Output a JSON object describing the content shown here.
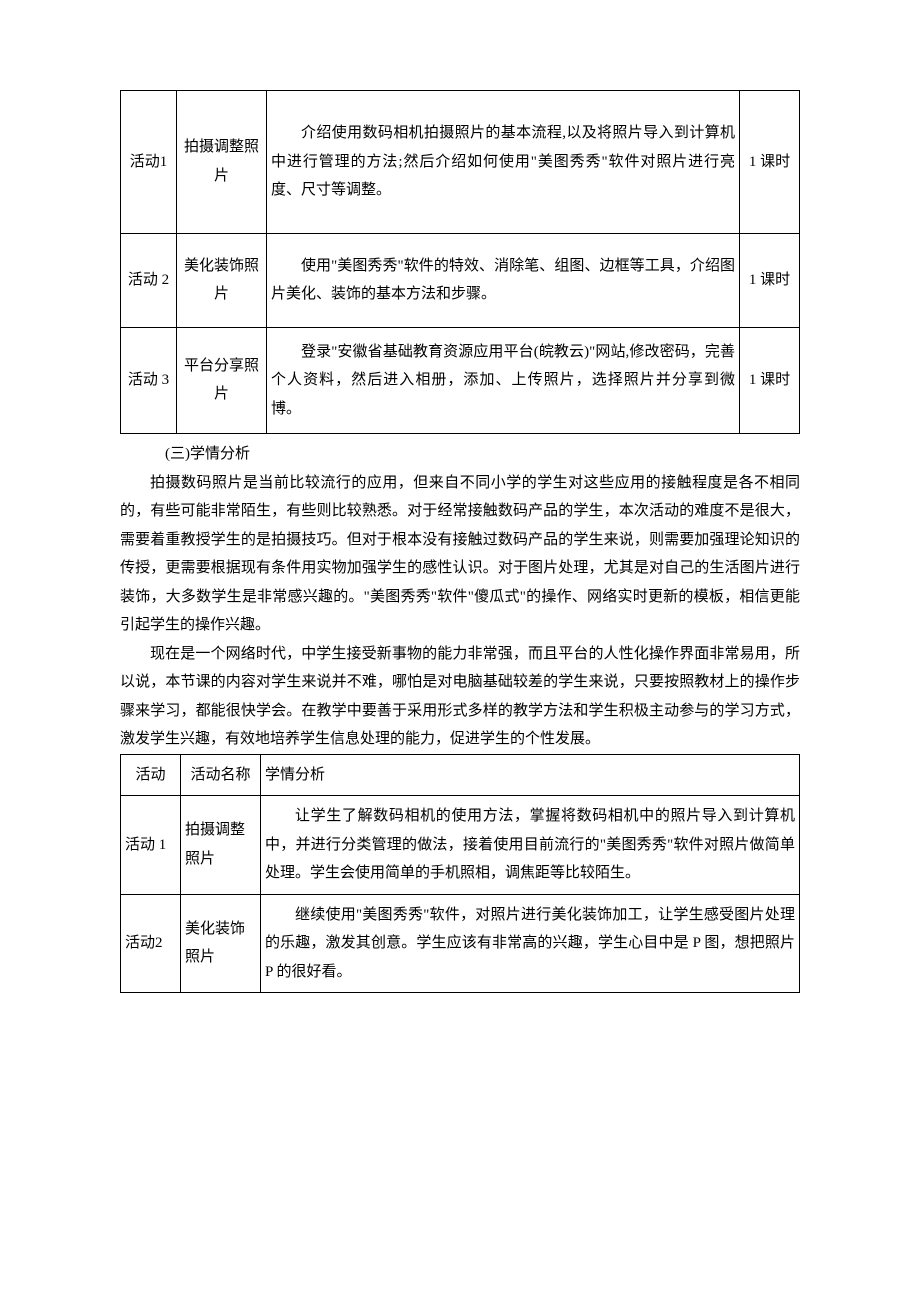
{
  "colors": {
    "text": "#000000",
    "background": "#ffffff",
    "border": "#000000"
  },
  "typography": {
    "body_font": "SimSun",
    "body_size_pt": 11,
    "line_height": 1.9
  },
  "table1": {
    "rows": [
      {
        "activity": "活动1",
        "name": "拍摄调整照片",
        "description": "介绍使用数码相机拍摄照片的基本流程,以及将照片导入到计算机中进行管理的方法;然后介绍如何使用\"美图秀秀\"软件对照片进行亮度、尺寸等调整。",
        "duration": "1 课时"
      },
      {
        "activity": "活动 2",
        "name": "美化装饰照片",
        "description": "使用\"美图秀秀\"软件的特效、消除笔、组图、边框等工具，介绍图片美化、装饰的基本方法和步骤。",
        "duration": "1 课时"
      },
      {
        "activity": "活动 3",
        "name": "平台分享照片",
        "description": "登录\"安徽省基础教育资源应用平台(皖教云)\"网站,修改密码，完善个人资料，然后进入相册，添加、上传照片，选择照片并分享到微博。",
        "duration": "1 课时"
      }
    ]
  },
  "section_heading": "(三)学情分析",
  "paragraphs": [
    "拍摄数码照片是当前比较流行的应用，但来自不同小学的学生对这些应用的接触程度是各不相同的，有些可能非常陌生，有些则比较熟悉。对于经常接触数码产品的学生，本次活动的难度不是很大，需要着重教授学生的是拍摄技巧。但对于根本没有接触过数码产品的学生来说，则需要加强理论知识的传授，更需要根据现有条件用实物加强学生的感性认识。对于图片处理，尤其是对自己的生活图片进行装饰，大多数学生是非常感兴趣的。\"美图秀秀\"软件\"傻瓜式\"的操作、网络实时更新的模板，相信更能引起学生的操作兴趣。",
    "现在是一个网络时代，中学生接受新事物的能力非常强，而且平台的人性化操作界面非常易用，所以说，本节课的内容对学生来说并不难，哪怕是对电脑基础较差的学生来说，只要按照教材上的操作步骤来学习，都能很快学会。在教学中要善于采用形式多样的教学方法和学生积极主动参与的学习方式，激发学生兴趣，有效地培养学生信息处理的能力，促进学生的个性发展。"
  ],
  "table2": {
    "headers": {
      "activity": "活动",
      "name": "活动名称",
      "analysis": "学情分析"
    },
    "rows": [
      {
        "activity": "活动 1",
        "name": "拍摄调整照片",
        "analysis": "让学生了解数码相机的使用方法，掌握将数码相机中的照片导入到计算机中，并进行分类管理的做法，接着使用目前流行的\"美图秀秀\"软件对照片做简单处理。学生会使用简单的手机照相，调焦距等比较陌生。"
      },
      {
        "activity": "活动2",
        "name": "美化装饰照片",
        "analysis": "继续使用\"美图秀秀\"软件，对照片进行美化装饰加工，让学生感受图片处理的乐趣，激发其创意。学生应该有非常高的兴趣，学生心目中是 P 图，想把照片 P 的很好看。"
      }
    ]
  }
}
